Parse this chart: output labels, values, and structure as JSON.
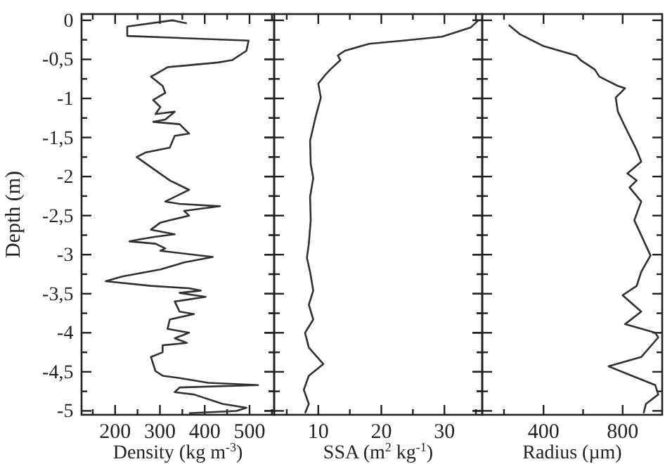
{
  "chart_data": [
    {
      "type": "line",
      "ylabel": "Depth (m)",
      "xlabel": "Density (kg m$^{-3}$)",
      "xlim": [
        125,
        555
      ],
      "ylim": [
        -5.05,
        0.08
      ],
      "xticks": [
        {
          "value": 150,
          "label": null
        },
        200,
        {
          "value": 250,
          "label": null
        },
        300,
        {
          "value": 350,
          "label": null
        },
        400,
        {
          "value": 450,
          "label": null
        },
        500,
        {
          "value": 550,
          "label": null
        }
      ],
      "yticks": [
        0,
        {
          "value": -0.25,
          "label": null
        },
        {
          "value": -0.5,
          "label": "-0,5"
        },
        {
          "value": -0.75,
          "label": null
        },
        -1,
        {
          "value": -1.25,
          "label": null
        },
        {
          "value": -1.5,
          "label": "-1,5"
        },
        {
          "value": -1.75,
          "label": null
        },
        -2,
        {
          "value": -2.25,
          "label": null
        },
        {
          "value": -2.5,
          "label": "-2,5"
        },
        {
          "value": -2.75,
          "label": null
        },
        -3,
        {
          "value": -3.25,
          "label": null
        },
        {
          "value": -3.5,
          "label": "-3,5"
        },
        {
          "value": -3.75,
          "label": null
        },
        -4,
        {
          "value": -4.25,
          "label": null
        },
        {
          "value": -4.5,
          "label": "-4,5"
        },
        {
          "value": -4.75,
          "label": null
        },
        -5
      ],
      "series": [
        {
          "color": "#303030",
          "x": [
            360,
            328,
            227,
            227,
            498,
            493,
            461,
            430,
            317,
            290,
            280,
            306,
            312,
            285,
            301,
            290,
            333,
            312,
            285,
            344,
            365,
            333,
            322,
            269,
            248,
            322,
            365,
            312,
            344,
            434,
            354,
            365,
            322,
            301,
            280,
            333,
            290,
            259,
            232,
            290,
            312,
            301,
            418,
            354,
            301,
            216,
            179,
            280,
            365,
            391,
            344,
            402,
            333,
            344,
            376,
            322,
            317,
            365,
            333,
            360,
            306,
            306,
            280,
            290,
            306,
            344,
            408,
            519,
            344,
            333,
            376,
            440,
            493,
            471,
            365
          ],
          "values": [
            -0.04,
            0,
            -0.08,
            -0.2,
            -0.26,
            -0.39,
            -0.51,
            -0.54,
            -0.6,
            -0.69,
            -0.72,
            -0.84,
            -0.93,
            -1.02,
            -1.11,
            -1.2,
            -1.17,
            -1.27,
            -1.3,
            -1.33,
            -1.45,
            -1.48,
            -1.63,
            -1.69,
            -1.75,
            -2.05,
            -2.17,
            -2.32,
            -2.35,
            -2.38,
            -2.44,
            -2.5,
            -2.56,
            -2.59,
            -2.68,
            -2.74,
            -2.77,
            -2.8,
            -2.83,
            -2.86,
            -2.92,
            -2.95,
            -3.03,
            -3.1,
            -3.19,
            -3.28,
            -3.34,
            -3.4,
            -3.43,
            -3.46,
            -3.49,
            -3.54,
            -3.6,
            -3.73,
            -3.76,
            -3.83,
            -3.95,
            -4.0,
            -4.07,
            -4.13,
            -4.16,
            -4.25,
            -4.31,
            -4.49,
            -4.55,
            -4.58,
            -4.64,
            -4.67,
            -4.7,
            -4.76,
            -4.79,
            -4.91,
            -4.96,
            -5.0,
            -5.03
          ]
        }
      ]
    },
    {
      "type": "line",
      "xlabel": "SSA (m$^{2}$ kg$^{-1}$)",
      "xlim": [
        3,
        36
      ],
      "ylim": [
        -5.05,
        0.08
      ],
      "tick_labels": "x",
      "xticks": [
        {
          "value": 5,
          "label": null
        },
        10,
        {
          "value": 15,
          "label": null
        },
        20,
        {
          "value": 25,
          "label": null
        },
        30,
        {
          "value": 35,
          "label": null
        }
      ],
      "yticks": [
        0,
        {
          "value": -0.25,
          "label": null
        },
        -0.5,
        {
          "value": -0.75,
          "label": null
        },
        -1,
        {
          "value": -1.25,
          "label": null
        },
        -1.5,
        {
          "value": -1.75,
          "label": null
        },
        -2,
        {
          "value": -2.25,
          "label": null
        },
        -2.5,
        {
          "value": -2.75,
          "label": null
        },
        -3,
        {
          "value": -3.25,
          "label": null
        },
        -3.5,
        {
          "value": -3.75,
          "label": null
        },
        -4,
        {
          "value": -4.25,
          "label": null
        },
        -4.5,
        {
          "value": -4.75,
          "label": null
        },
        -5
      ],
      "series": [
        {
          "color": "#303030",
          "x": [
            35.4,
            34.2,
            29.6,
            23.5,
            18.1,
            14.2,
            13.1,
            13.5,
            11.9,
            11.2,
            10,
            10.4,
            9.6,
            8.7,
            8.8,
            9.2,
            8.7,
            8.8,
            8.5,
            8.2,
            8.7,
            9.2,
            8.5,
            9.2,
            7.9,
            8.5,
            10.8,
            8.5,
            7.7,
            8.5,
            7.9
          ],
          "values": [
            0,
            -0.09,
            -0.21,
            -0.26,
            -0.3,
            -0.39,
            -0.45,
            -0.51,
            -0.63,
            -0.69,
            -0.81,
            -0.99,
            -1.23,
            -1.54,
            -1.84,
            -2.02,
            -2.26,
            -2.56,
            -2.86,
            -3.04,
            -3.22,
            -3.46,
            -3.64,
            -3.83,
            -4.0,
            -4.19,
            -4.4,
            -4.55,
            -4.73,
            -4.91,
            -5.03
          ]
        }
      ]
    },
    {
      "type": "line",
      "xlabel": "Radius (µm)",
      "xlim": [
        90,
        1000
      ],
      "ylim": [
        -5.05,
        0.08
      ],
      "tick_labels": "x",
      "xticks": [
        {
          "value": 200,
          "label": null
        },
        400,
        {
          "value": 600,
          "label": null
        },
        800
      ],
      "yticks": [
        0,
        {
          "value": -0.25,
          "label": null
        },
        -0.5,
        {
          "value": -0.75,
          "label": null
        },
        -1,
        {
          "value": -1.25,
          "label": null
        },
        -1.5,
        {
          "value": -1.75,
          "label": null
        },
        -2,
        {
          "value": -2.25,
          "label": null
        },
        -2.5,
        {
          "value": -2.75,
          "label": null
        },
        -3,
        {
          "value": -3.25,
          "label": null
        },
        -3.5,
        {
          "value": -3.75,
          "label": null
        },
        -4,
        {
          "value": -4.25,
          "label": null
        },
        -4.5,
        {
          "value": -4.75,
          "label": null
        },
        -5
      ],
      "series": [
        {
          "color": "#303030",
          "x": [
            224,
            282,
            400,
            565,
            588,
            659,
            682,
            729,
            776,
            812,
            765,
            776,
            812,
            871,
            894,
            824,
            871,
            835,
            894,
            859,
            941,
            894,
            871,
            800,
            894,
            812,
            965,
            980,
            894,
            729,
            847,
            965,
            980,
            918,
            906
          ],
          "values": [
            -0.06,
            -0.18,
            -0.33,
            -0.45,
            -0.51,
            -0.63,
            -0.72,
            -0.78,
            -0.84,
            -0.87,
            -0.99,
            -1.17,
            -1.36,
            -1.66,
            -1.81,
            -1.96,
            -2.05,
            -2.14,
            -2.32,
            -2.56,
            -3.01,
            -3.22,
            -3.4,
            -3.52,
            -3.73,
            -3.89,
            -4.0,
            -4.06,
            -4.31,
            -4.43,
            -4.55,
            -4.67,
            -4.79,
            -4.91,
            -5.03
          ]
        }
      ]
    }
  ]
}
